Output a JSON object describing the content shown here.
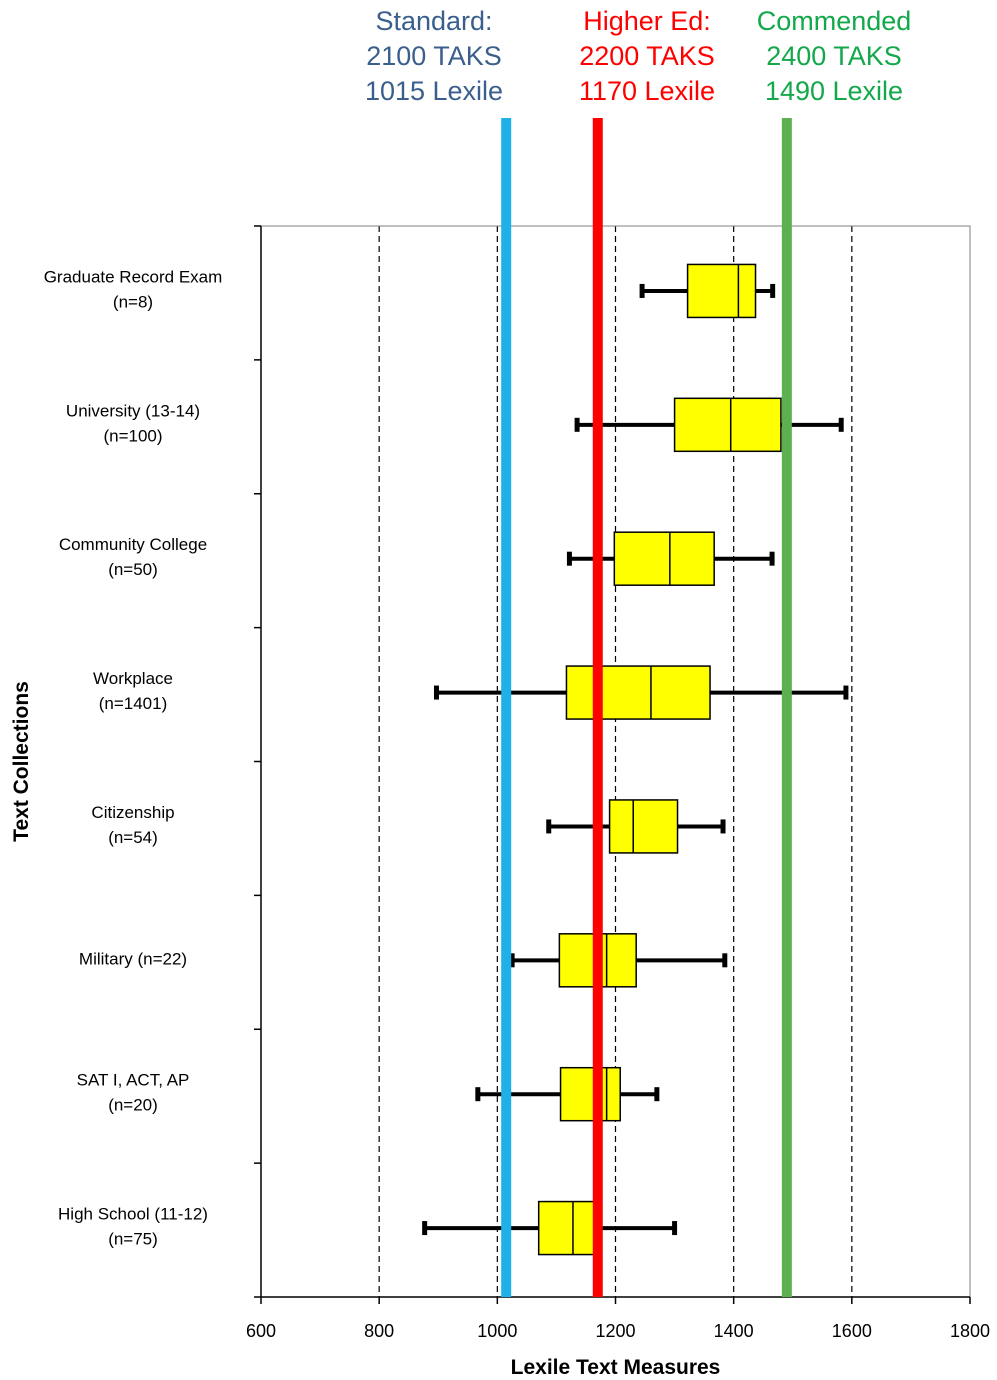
{
  "chart_data": {
    "type": "boxplot",
    "orientation": "horizontal",
    "xlabel": "Lexile Text Measures",
    "ylabel": "Text Collections",
    "xlim": [
      600,
      1800
    ],
    "xticks": [
      600,
      800,
      1000,
      1200,
      1400,
      1600,
      1800
    ],
    "grid": "vertical dashed",
    "box_color": "#ffff00",
    "categories": [
      {
        "label": [
          "Graduate Record Exam",
          "(n=8)"
        ],
        "whisker_low": 1245,
        "q1": 1322,
        "median": 1408,
        "q3": 1437,
        "whisker_high": 1466
      },
      {
        "label": [
          "University (13-14)",
          "(n=100)"
        ],
        "whisker_low": 1135,
        "q1": 1300,
        "median": 1395,
        "q3": 1480,
        "whisker_high": 1582
      },
      {
        "label": [
          "Community College",
          "(n=50)"
        ],
        "whisker_low": 1122,
        "q1": 1198,
        "median": 1292,
        "q3": 1367,
        "whisker_high": 1465
      },
      {
        "label": [
          "Workplace",
          "(n=1401)"
        ],
        "whisker_low": 897,
        "q1": 1117,
        "median": 1260,
        "q3": 1360,
        "whisker_high": 1590
      },
      {
        "label": [
          "Citizenship",
          "(n=54)"
        ],
        "whisker_low": 1087,
        "q1": 1190,
        "median": 1230,
        "q3": 1305,
        "whisker_high": 1382
      },
      {
        "label": [
          "Military (n=22)"
        ],
        "whisker_low": 1025,
        "q1": 1105,
        "median": 1185,
        "q3": 1235,
        "whisker_high": 1385
      },
      {
        "label": [
          "SAT I, ACT, AP",
          "(n=20)"
        ],
        "whisker_low": 967,
        "q1": 1107,
        "median": 1185,
        "q3": 1208,
        "whisker_high": 1270
      },
      {
        "label": [
          "High School (11-12)",
          "(n=75)"
        ],
        "whisker_low": 877,
        "q1": 1070,
        "median": 1128,
        "q3": 1172,
        "whisker_high": 1300
      }
    ],
    "reference_lines": [
      {
        "value": 1015,
        "color": "#1fb0e8",
        "text_color": "#3a5f8c",
        "lines": [
          "Standard:",
          "2100 TAKS",
          "1015 Lexile"
        ]
      },
      {
        "value": 1170,
        "color": "#ff0000",
        "text_color": "#ff0000",
        "lines": [
          "Higher Ed:",
          "2200 TAKS",
          "1170 Lexile"
        ]
      },
      {
        "value": 1490,
        "color": "#5cb050",
        "text_color": "#13a84a",
        "lines": [
          "Commended",
          "2400 TAKS",
          "1490 Lexile"
        ]
      }
    ]
  }
}
